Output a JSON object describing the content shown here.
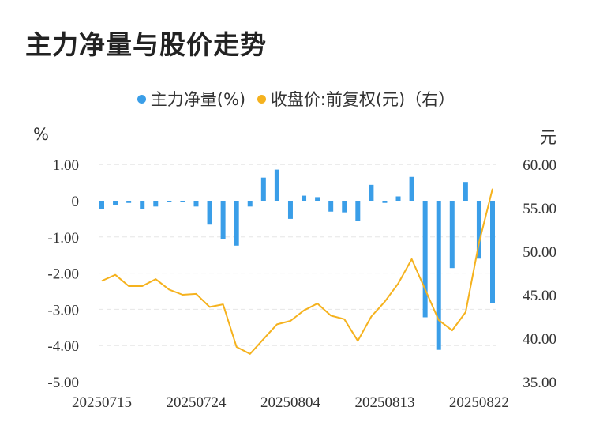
{
  "title": "主力净量与股价走势",
  "chart_data": {
    "type": "bar+line",
    "title": "主力净量与股价走势",
    "legend": [
      {
        "name": "主力净量(%)",
        "color": "#3a9ee8",
        "type": "bar"
      },
      {
        "name": "收盘价:前复权(元)（右）",
        "color": "#f5b21e",
        "type": "line"
      }
    ],
    "left_axis": {
      "unit": "%",
      "ticks": [
        "1.00",
        "0",
        "-1.00",
        "-2.00",
        "-3.00",
        "-4.00",
        "-5.00"
      ],
      "range": [
        -5,
        1.5
      ]
    },
    "right_axis": {
      "unit": "元",
      "ticks": [
        "60.00",
        "55.00",
        "50.00",
        "45.00",
        "40.00",
        "35.00"
      ],
      "range": [
        35,
        63
      ]
    },
    "x_tick_labels": [
      "20250715",
      "20250724",
      "20250804",
      "20250813",
      "20250822"
    ],
    "x_tick_indices": [
      0,
      7,
      14,
      21,
      28
    ],
    "bars": [
      -0.22,
      -0.12,
      -0.06,
      -0.22,
      -0.16,
      -0.04,
      0,
      -0.16,
      -0.66,
      -1.06,
      -1.24,
      -0.16,
      0.64,
      0.86,
      -0.5,
      0.14,
      0.1,
      -0.3,
      -0.32,
      -0.56,
      0.44,
      -0.06,
      0.12,
      0.66,
      -3.22,
      -4.12,
      -1.86,
      0.52,
      -1.6,
      -2.82
    ],
    "close": [
      46.6,
      47.3,
      46.0,
      46.0,
      46.8,
      45.6,
      45.0,
      45.1,
      43.6,
      43.9,
      39.0,
      38.2,
      39.9,
      41.6,
      42.0,
      43.2,
      44.0,
      42.6,
      42.2,
      39.7,
      42.5,
      44.2,
      46.3,
      49.1,
      45.6,
      42.1,
      40.9,
      43.0,
      51.0,
      57.2
    ]
  }
}
